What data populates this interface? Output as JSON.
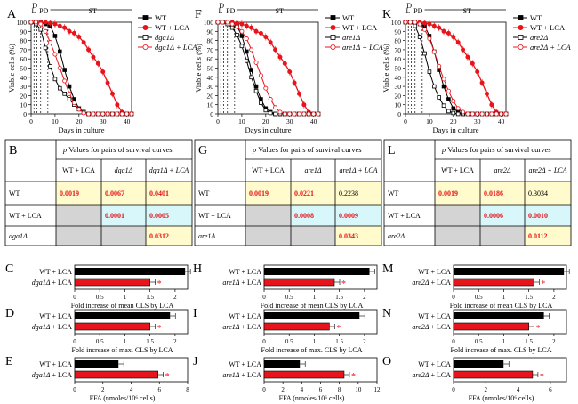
{
  "colors": {
    "black": "#000000",
    "red": "#e8141b",
    "yellow": "#fffbcc",
    "cyan": "#d7f7fa",
    "gray": "#d4d4d4",
    "grid": "#555555"
  },
  "survival": {
    "ylabel": "Viable cells (%)",
    "xlabel": "Days in culture",
    "phase_labels": [
      "D",
      "L",
      "PD",
      "ST"
    ],
    "yticks": [
      0,
      10,
      20,
      30,
      40,
      50,
      60,
      70,
      80,
      90,
      100
    ],
    "xticks": [
      0,
      10,
      20,
      30,
      40
    ],
    "xlim": [
      0,
      42
    ],
    "ylim": [
      0,
      100
    ]
  },
  "bars_common": {
    "mean_xlabel": "Fold increase of mean CLS by LCA",
    "max_xlabel": "Fold increase of max. CLS by LCA",
    "ffa_xlabel": "FFA (nmoles/10⁶ cells)",
    "fold_ticks": [
      "0",
      "0.5",
      "1",
      "1.5",
      "2"
    ],
    "wt_label": "WT + LCA"
  },
  "panels": [
    {
      "surv_letter": "A",
      "table_letter": "B",
      "letters": [
        "C",
        "D",
        "E"
      ],
      "legend": [
        "WT",
        "WT + LCA",
        "dga1Δ",
        "dga1Δ + LCA"
      ],
      "table_title": "p Values for pairs of survival curves",
      "col_headers": [
        "WT + LCA",
        "dga1Δ",
        "dga1Δ + LCA"
      ],
      "row_headers": [
        "WT",
        "WT + LCA",
        "dga1Δ"
      ],
      "cells": [
        [
          "0.0019",
          "0.0067",
          "0.0401"
        ],
        [
          "",
          "0.0001",
          "0.0005"
        ],
        [
          "",
          "",
          "0.0312"
        ]
      ],
      "mutant_label": "dga1Δ + LCA",
      "mean_vals": [
        2.2,
        1.5
      ],
      "max_vals": [
        1.9,
        1.5
      ],
      "ffa_vals": [
        3.1,
        5.9
      ],
      "ffa_max": 8,
      "ffa_ticks": [
        "0",
        "2",
        "4",
        "6",
        "8"
      ]
    },
    {
      "surv_letter": "F",
      "table_letter": "G",
      "letters": [
        "H",
        "I",
        "J"
      ],
      "legend": [
        "WT",
        "WT + LCA",
        "are1Δ",
        "are1Δ + LCA"
      ],
      "table_title": "p Values for pairs of survival curves",
      "col_headers": [
        "WT + LCA",
        "are1Δ",
        "are1Δ + LCA"
      ],
      "row_headers": [
        "WT",
        "WT + LCA",
        "are1Δ"
      ],
      "cells": [
        [
          "0.0019",
          "0.0221",
          "0.2238"
        ],
        [
          "",
          "0.0008",
          "0.0009"
        ],
        [
          "",
          "",
          "0.0343"
        ]
      ],
      "mutant_label": "are1Δ + LCA",
      "mean_vals": [
        2.1,
        1.4
      ],
      "max_vals": [
        1.9,
        1.3
      ],
      "ffa_vals": [
        3.8,
        8.5
      ],
      "ffa_max": 12,
      "ffa_ticks": [
        "0",
        "2",
        "4",
        "6",
        "8",
        "10",
        "12"
      ]
    },
    {
      "surv_letter": "K",
      "table_letter": "L",
      "letters": [
        "M",
        "N",
        "O"
      ],
      "legend": [
        "WT",
        "WT + LCA",
        "are2Δ",
        "are2Δ + LCA"
      ],
      "table_title": "p Values for pairs of survival curves",
      "col_headers": [
        "WT + LCA",
        "are2Δ",
        "are2Δ + LCA"
      ],
      "row_headers": [
        "WT",
        "WT + LCA",
        "are2Δ"
      ],
      "cells": [
        [
          "0.0019",
          "0.0186",
          "0.3034"
        ],
        [
          "",
          "0.0006",
          "0.0010"
        ],
        [
          "",
          "",
          "0.0112"
        ]
      ],
      "mutant_label": "are2Δ + LCA",
      "mean_vals": [
        2.2,
        1.6
      ],
      "max_vals": [
        1.8,
        1.5
      ],
      "ffa_vals": [
        3.1,
        4.9
      ],
      "ffa_max": 7,
      "ffa_ticks": [
        "0",
        "2",
        "4",
        "6"
      ]
    }
  ],
  "chart_data": [
    {
      "type": "line",
      "title": "A",
      "xlabel": "Days in culture",
      "ylabel": "Viable cells (%)",
      "ylim": [
        0,
        100
      ],
      "x": [
        0,
        2,
        4,
        6,
        8,
        10,
        12,
        14,
        16,
        18,
        20,
        22,
        24,
        26,
        28,
        30,
        32,
        34,
        36,
        38,
        40,
        42
      ],
      "series": [
        {
          "name": "WT",
          "values": [
            100,
            100,
            100,
            98,
            96,
            85,
            68,
            48,
            30,
            16,
            6,
            2,
            0,
            0,
            0,
            0,
            0,
            0,
            0,
            0,
            0,
            0
          ]
        },
        {
          "name": "WT + LCA",
          "values": [
            100,
            100,
            100,
            100,
            99,
            98,
            96,
            94,
            90,
            88,
            84,
            78,
            70,
            62,
            55,
            46,
            34,
            22,
            10,
            2,
            0,
            0
          ]
        },
        {
          "name": "dga1Δ",
          "values": [
            100,
            98,
            92,
            72,
            52,
            38,
            28,
            22,
            16,
            10,
            5,
            2,
            0,
            0,
            0,
            0,
            0,
            0,
            0,
            0,
            0,
            0
          ]
        },
        {
          "name": "dga1Δ + LCA",
          "values": [
            100,
            100,
            98,
            90,
            78,
            65,
            50,
            36,
            22,
            12,
            5,
            1,
            0,
            0,
            0,
            0,
            0,
            0,
            0,
            0,
            0,
            0
          ]
        }
      ]
    },
    {
      "type": "line",
      "title": "F",
      "xlabel": "Days in culture",
      "ylabel": "Viable cells (%)",
      "ylim": [
        0,
        100
      ],
      "x": [
        0,
        2,
        4,
        6,
        8,
        10,
        12,
        14,
        16,
        18,
        20,
        22,
        24,
        26,
        28,
        30,
        32,
        34,
        36,
        38,
        40,
        42
      ],
      "series": [
        {
          "name": "WT",
          "values": [
            100,
            100,
            100,
            98,
            96,
            85,
            68,
            48,
            30,
            16,
            6,
            2,
            0,
            0,
            0,
            0,
            0,
            0,
            0,
            0,
            0,
            0
          ]
        },
        {
          "name": "WT + LCA",
          "values": [
            100,
            100,
            100,
            100,
            99,
            98,
            96,
            94,
            90,
            88,
            84,
            78,
            70,
            62,
            55,
            46,
            34,
            22,
            10,
            2,
            0,
            0
          ]
        },
        {
          "name": "are1Δ",
          "values": [
            100,
            100,
            98,
            94,
            86,
            74,
            58,
            40,
            25,
            12,
            4,
            1,
            0,
            0,
            0,
            0,
            0,
            0,
            0,
            0,
            0,
            0
          ]
        },
        {
          "name": "are1Δ + LCA",
          "values": [
            100,
            100,
            100,
            98,
            95,
            90,
            82,
            70,
            56,
            42,
            28,
            16,
            7,
            2,
            0,
            0,
            0,
            0,
            0,
            0,
            0,
            0
          ]
        }
      ]
    },
    {
      "type": "line",
      "title": "K",
      "xlabel": "Days in culture",
      "ylabel": "Viable cells (%)",
      "ylim": [
        0,
        100
      ],
      "x": [
        0,
        2,
        4,
        6,
        8,
        10,
        12,
        14,
        16,
        18,
        20,
        22,
        24,
        26,
        28,
        30,
        32,
        34,
        36,
        38,
        40,
        42
      ],
      "series": [
        {
          "name": "WT",
          "values": [
            100,
            100,
            100,
            98,
            96,
            85,
            68,
            48,
            30,
            16,
            6,
            2,
            0,
            0,
            0,
            0,
            0,
            0,
            0,
            0,
            0,
            0
          ]
        },
        {
          "name": "WT + LCA",
          "values": [
            100,
            100,
            100,
            100,
            99,
            98,
            96,
            94,
            90,
            88,
            84,
            78,
            70,
            62,
            55,
            46,
            34,
            22,
            10,
            2,
            0,
            0
          ]
        },
        {
          "name": "are2Δ",
          "values": [
            100,
            100,
            96,
            84,
            66,
            46,
            30,
            18,
            9,
            3,
            1,
            0,
            0,
            0,
            0,
            0,
            0,
            0,
            0,
            0,
            0,
            0
          ]
        },
        {
          "name": "are2Δ + LCA",
          "values": [
            100,
            100,
            100,
            98,
            92,
            82,
            68,
            52,
            38,
            25,
            14,
            6,
            2,
            0,
            0,
            0,
            0,
            0,
            0,
            0,
            0,
            0
          ]
        }
      ]
    },
    {
      "type": "bar",
      "title": "C",
      "xlabel": "Fold increase of mean CLS by LCA",
      "categories": [
        "WT + LCA",
        "dga1Δ + LCA"
      ],
      "values": [
        2.2,
        1.5
      ]
    },
    {
      "type": "bar",
      "title": "D",
      "xlabel": "Fold increase of max. CLS by LCA",
      "categories": [
        "WT + LCA",
        "dga1Δ + LCA"
      ],
      "values": [
        1.9,
        1.5
      ]
    },
    {
      "type": "bar",
      "title": "E",
      "xlabel": "FFA (nmoles/10⁶ cells)",
      "categories": [
        "WT + LCA",
        "dga1Δ + LCA"
      ],
      "values": [
        3.1,
        5.9
      ]
    },
    {
      "type": "bar",
      "title": "H",
      "xlabel": "Fold increase of mean CLS by LCA",
      "categories": [
        "WT + LCA",
        "are1Δ + LCA"
      ],
      "values": [
        2.1,
        1.4
      ]
    },
    {
      "type": "bar",
      "title": "I",
      "xlabel": "Fold increase of max. CLS by LCA",
      "categories": [
        "WT + LCA",
        "are1Δ + LCA"
      ],
      "values": [
        1.9,
        1.3
      ]
    },
    {
      "type": "bar",
      "title": "J",
      "xlabel": "FFA (nmoles/10⁶ cells)",
      "categories": [
        "WT + LCA",
        "are1Δ + LCA"
      ],
      "values": [
        3.8,
        8.5
      ]
    },
    {
      "type": "bar",
      "title": "M",
      "xlabel": "Fold increase of mean CLS by LCA",
      "categories": [
        "WT + LCA",
        "are2Δ + LCA"
      ],
      "values": [
        2.2,
        1.6
      ]
    },
    {
      "type": "bar",
      "title": "N",
      "xlabel": "Fold increase of max. CLS by LCA",
      "categories": [
        "WT + LCA",
        "are2Δ + LCA"
      ],
      "values": [
        1.8,
        1.5
      ]
    },
    {
      "type": "bar",
      "title": "O",
      "xlabel": "FFA (nmoles/10⁶ cells)",
      "categories": [
        "WT + LCA",
        "are2Δ + LCA"
      ],
      "values": [
        3.1,
        4.9
      ]
    }
  ]
}
